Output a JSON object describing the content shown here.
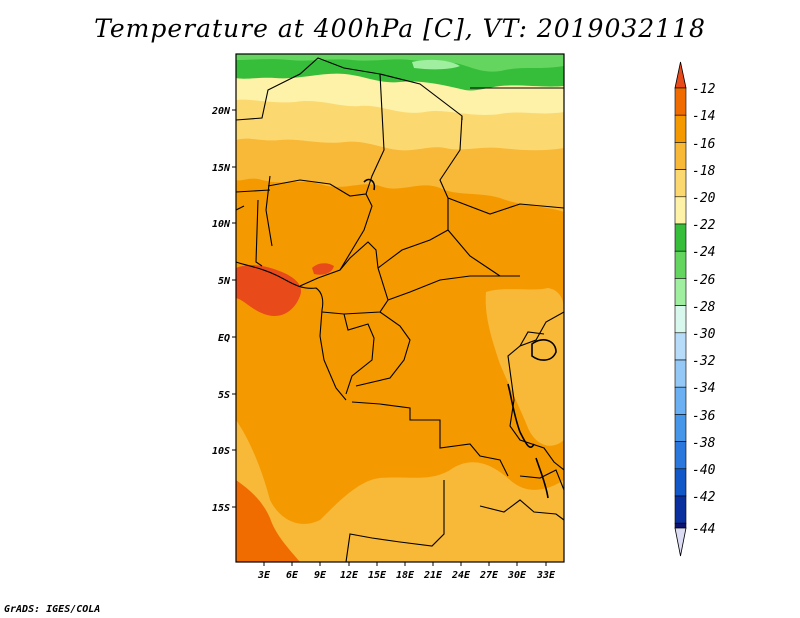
{
  "title": "Temperature at 400hPa [C], VT: 2019032118",
  "credit": "GrADS: IGES/COLA",
  "map": {
    "variable": "Temperature",
    "level": "400hPa",
    "units": "C",
    "valid_time": "2019032118",
    "lon_ticks": [
      "3E",
      "6E",
      "9E",
      "12E",
      "15E",
      "18E",
      "21E",
      "24E",
      "27E",
      "30E",
      "33E"
    ],
    "lat_ticks": [
      "20N",
      "15N",
      "10N",
      "5N",
      "EQ",
      "5S",
      "10S",
      "15S"
    ]
  },
  "colorbar": {
    "labels": [
      "-12",
      "-14",
      "-16",
      "-18",
      "-20",
      "-22",
      "-24",
      "-26",
      "-28",
      "-30",
      "-32",
      "-34",
      "-36",
      "-38",
      "-40",
      "-42",
      "-44"
    ],
    "colors": [
      "#e84a1a",
      "#f06c00",
      "#f49a00",
      "#f8b838",
      "#fcd870",
      "#fdf2a8",
      "#36bd3a",
      "#64d660",
      "#a0eea0",
      "#d8f8ee",
      "#b6dcfa",
      "#94c8f6",
      "#6ab0f2",
      "#4696ea",
      "#2a78de",
      "#1258c8",
      "#0a30a0",
      "#0c1470",
      "#dcdcf4"
    ]
  }
}
